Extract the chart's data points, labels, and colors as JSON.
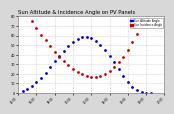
{
  "title": "Sun Altitude & Incidence Angle on PV Panels",
  "title_fontsize": 3.8,
  "background_color": "#d8d8d8",
  "plot_bg_color": "#ffffff",
  "grid_color": "#aaaaaa",
  "grid_style": "dotted",
  "legend_labels": [
    "Sun Altitude Angle",
    "Sun Incidence Angle"
  ],
  "legend_colors": [
    "#0000dd",
    "#cc0000"
  ],
  "ylim": [
    0,
    80
  ],
  "yticks": [
    0,
    10,
    20,
    30,
    40,
    50,
    60,
    70,
    80
  ],
  "ytick_labels": [
    "0",
    "10",
    "20",
    "30",
    "40",
    "50",
    "60",
    "70",
    "80"
  ],
  "xlim_start": "2024-01-01 04:00",
  "x_labels": [
    "04:00",
    "06:00",
    "08:00",
    "10:00",
    "12:00",
    "14:00",
    "16:00",
    "18:00",
    "20:00"
  ],
  "x_values": [
    4,
    6,
    8,
    10,
    12,
    14,
    16,
    18,
    20
  ],
  "altitude_x": [
    4.5,
    5,
    5.5,
    6,
    6.5,
    7,
    7.5,
    8,
    8.5,
    9,
    9.5,
    10,
    10.5,
    11,
    11.5,
    12,
    12.5,
    13,
    13.5,
    14,
    14.5,
    15,
    15.5,
    16,
    16.5,
    17,
    17.5,
    18,
    18.5
  ],
  "altitude_y": [
    2,
    4,
    7,
    11,
    16,
    21,
    27,
    33,
    39,
    44,
    49,
    53,
    56,
    58,
    58,
    57,
    54,
    50,
    45,
    39,
    32,
    25,
    18,
    11,
    6,
    3,
    1,
    0,
    0
  ],
  "incidence_x": [
    5.5,
    6,
    6.5,
    7,
    7.5,
    8,
    8.5,
    9,
    9.5,
    10,
    10.5,
    11,
    11.5,
    12,
    12.5,
    13,
    13.5,
    14,
    14.5,
    15,
    15.5,
    16,
    16.5,
    17,
    17.5
  ],
  "incidence_y": [
    75,
    68,
    61,
    55,
    49,
    43,
    38,
    33,
    29,
    25,
    22,
    20,
    18,
    17,
    17,
    18,
    20,
    23,
    27,
    32,
    38,
    45,
    53,
    62,
    70
  ],
  "marker": ".",
  "markersize": 2.0,
  "linewidth": 0.0
}
